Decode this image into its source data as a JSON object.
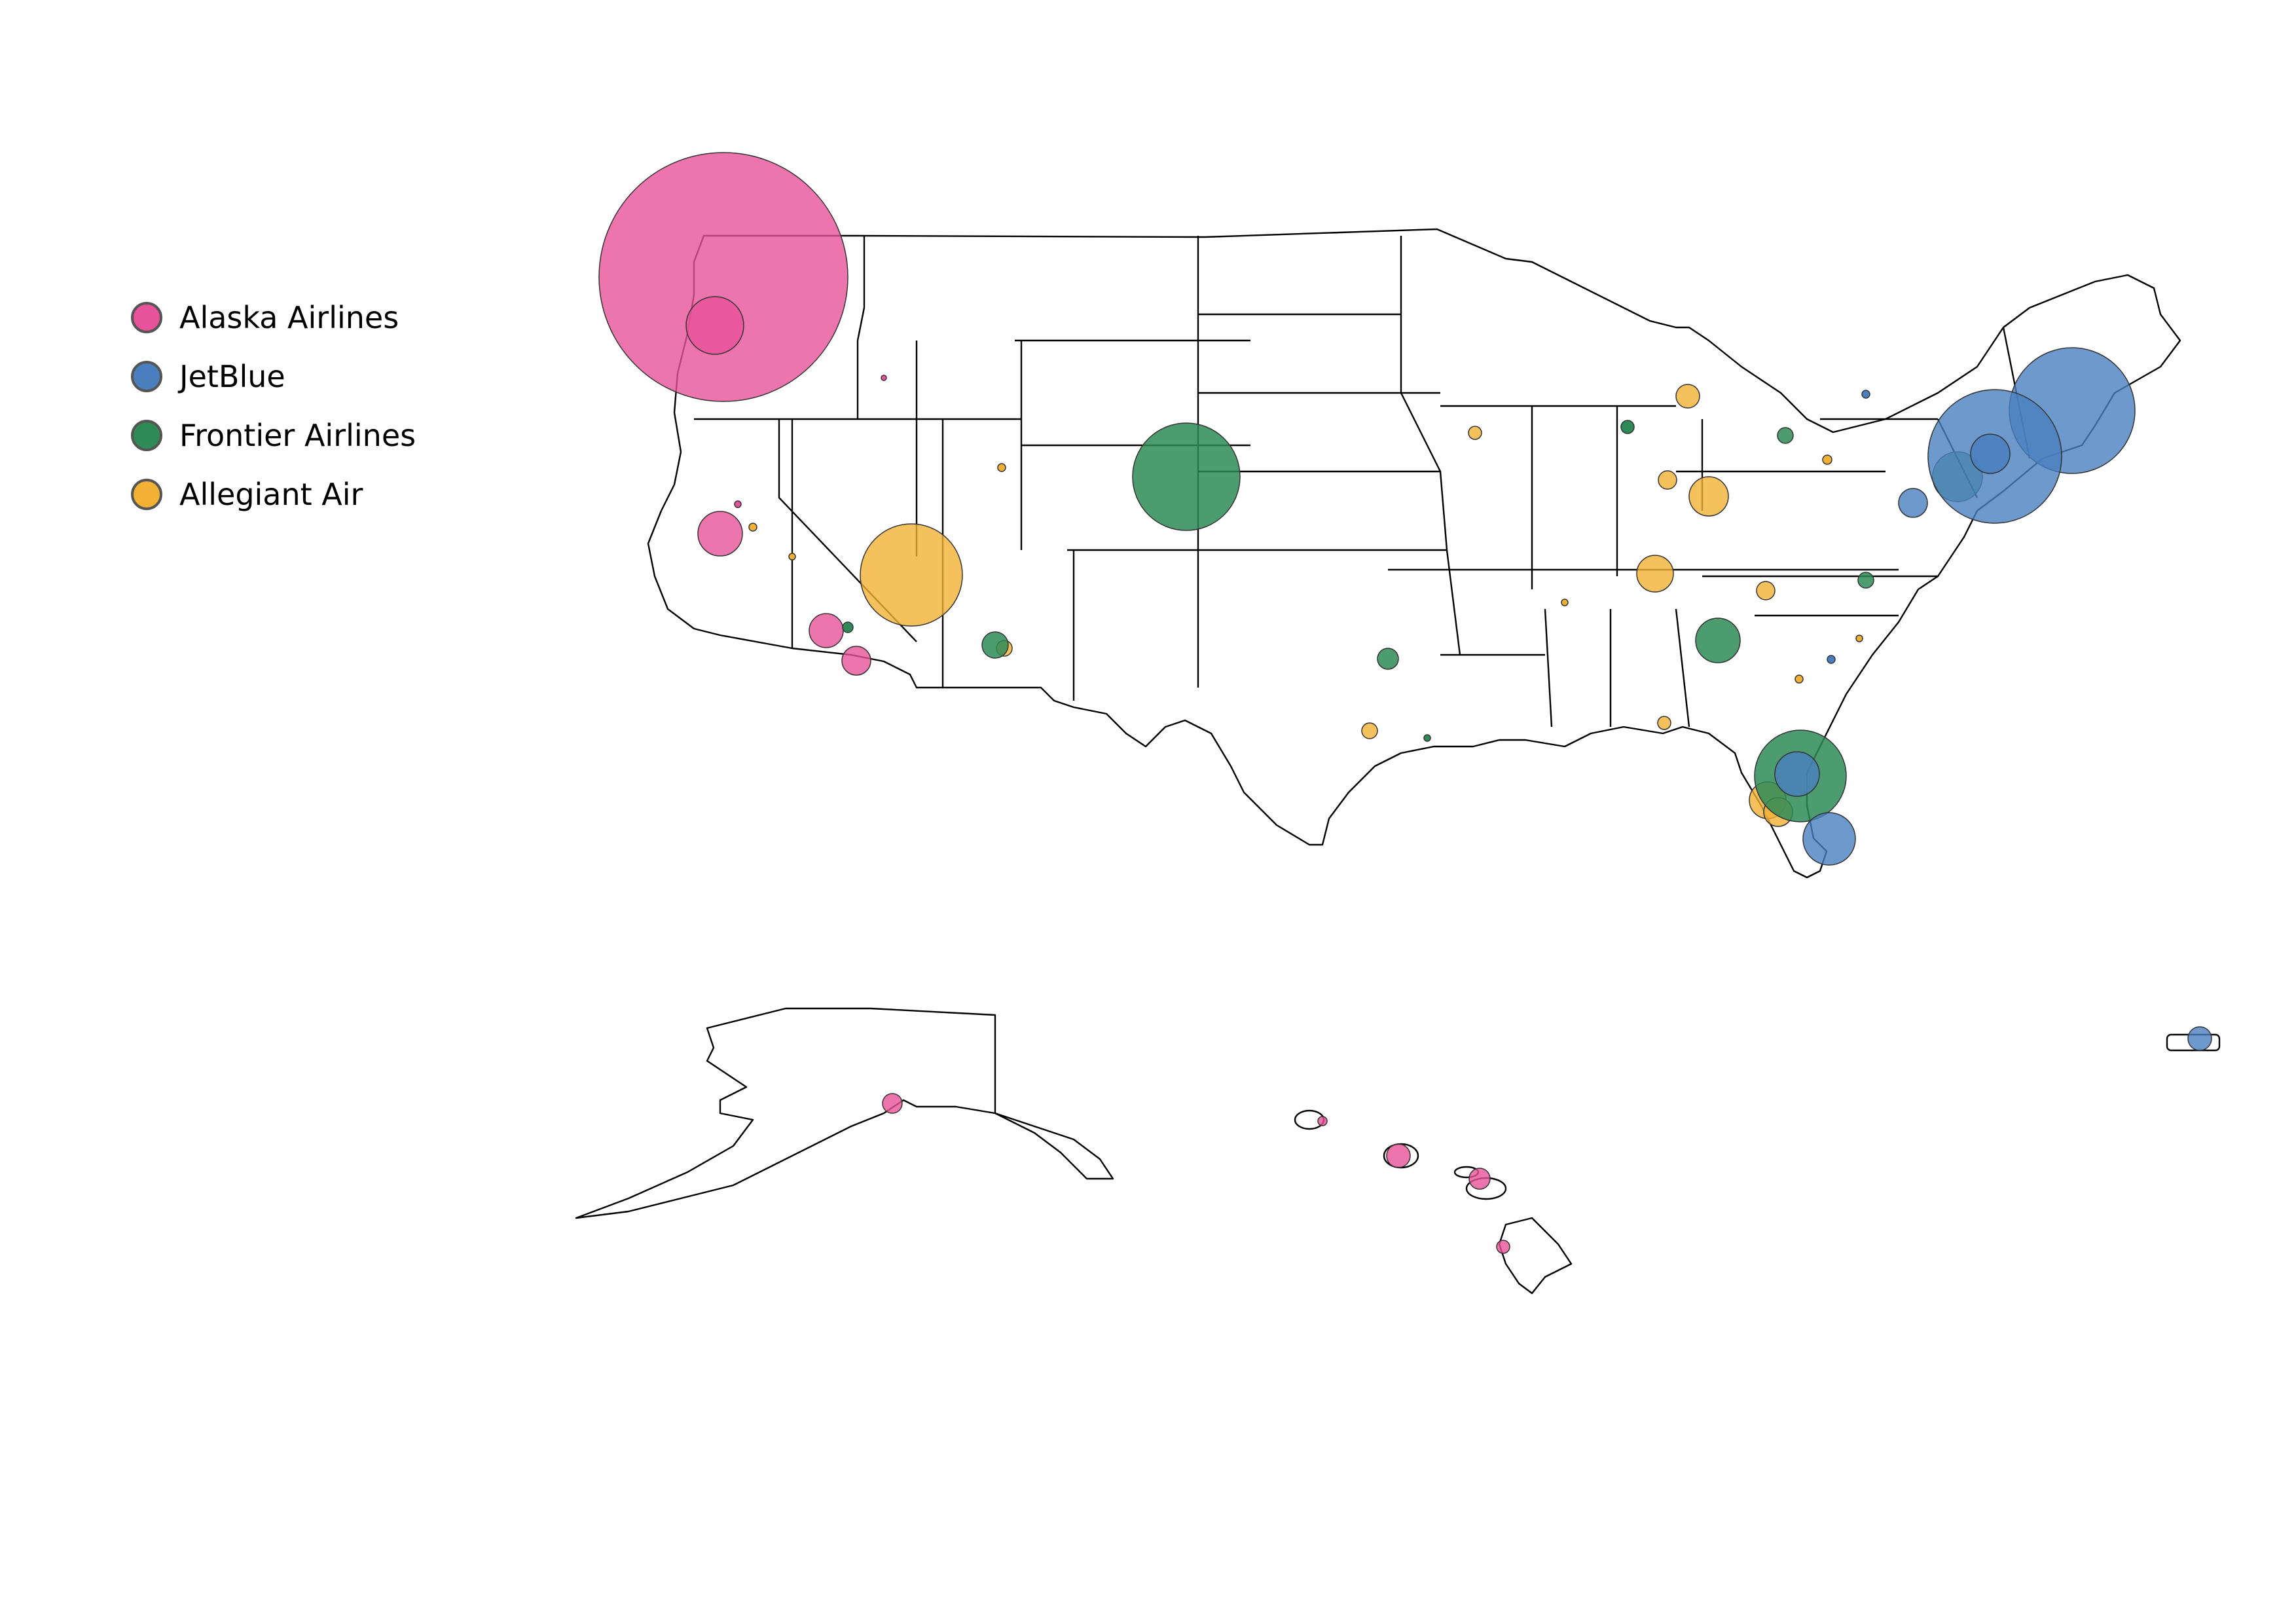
{
  "legend": [
    {
      "name": "Alaska Airlines",
      "color": "#E8529A"
    },
    {
      "name": "JetBlue",
      "color": "#4A7FBF"
    },
    {
      "name": "Frontier Airlines",
      "color": "#2E8B57"
    },
    {
      "name": "Allegiant Air",
      "color": "#F2B134"
    }
  ],
  "colors": {
    "alaska": "#E8529A",
    "jetblue": "#4A7FBF",
    "frontier": "#2E8B57",
    "allegiant": "#F2B134",
    "state_fill": "#ffffff",
    "state_stroke": "#000000"
  },
  "map": {
    "regions": [
      "contiguous-us",
      "alaska",
      "hawaii",
      "puerto-rico"
    ],
    "marker_encoding": "circle area proportional to airline traffic at airport"
  }
}
